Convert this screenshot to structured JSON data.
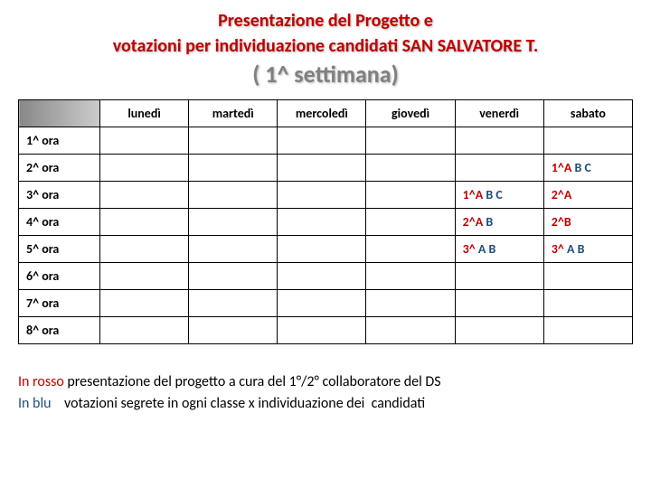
{
  "title_line1": "Presentazione del Progetto e",
  "title_line2": "votazioni per individuazione candidati SAN SALVATORE T.",
  "subtitle": "( 1^ settimana)",
  "columns": [
    "lunedì",
    "martedì",
    "mercoledì",
    "giovedì",
    "venerdì",
    "sabato"
  ],
  "rows": [
    "1^ ora",
    "2^ ora",
    "3^ ora",
    "4^ ora",
    "5^ ora",
    "6^ ora",
    "7^ ora",
    "8^ ora"
  ],
  "cells": {
    "r1c5": {
      "red": "1^A",
      "blue": "B C"
    },
    "r2c4": {
      "red": "1^A",
      "blue": "B C"
    },
    "r2c5": {
      "red": "2^A",
      "blue": ""
    },
    "r3c4": {
      "red": "2^A",
      "blue": "B"
    },
    "r3c5": {
      "red": "2^B",
      "blue": ""
    },
    "r4c4": {
      "red": "3^",
      "blue": "A B"
    },
    "r4c5": {
      "red": "3^",
      "blue": "A B"
    }
  },
  "footer_prefix_red": "In rosso",
  "footer_text_red": " presentazione del progetto a cura del 1°/2° collaboratore del DS",
  "footer_prefix_blue": "In blu",
  "footer_text_blue": "    votazioni segrete in ogni classe x individuazione dei  candidati",
  "colors": {
    "accent_red": "#c00000",
    "accent_blue": "#1f4e79",
    "grey": "#808080"
  }
}
